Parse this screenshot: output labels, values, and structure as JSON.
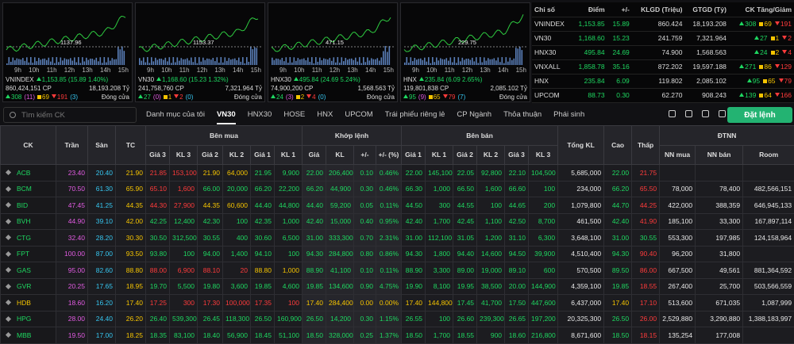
{
  "mini_charts": [
    {
      "name": "VNINDEX",
      "ref": "1137.96",
      "change": "1,153.85 (15.89 1.40%)",
      "volume": "860,424,151 CP",
      "value": "18,193.208 Tỷ",
      "up": "308",
      "up_ceiling": "(11)",
      "ref_count": "69",
      "down": "191",
      "down_floor": "(3)",
      "status": "Đóng cửa"
    },
    {
      "name": "VN30",
      "ref": "1153.37",
      "change": "1,168.60 (15.23 1.32%)",
      "volume": "241,758,760 CP",
      "value": "7,321.964 Tỷ",
      "up": "27",
      "up_ceiling": "(0)",
      "ref_count": "1",
      "down": "2",
      "down_floor": "(0)",
      "status": "Đóng cửa"
    },
    {
      "name": "HNX30",
      "ref": "471.15",
      "change": "495.84 (24.69 5.24%)",
      "volume": "74,900,200 CP",
      "value": "1,568.563 Tỷ",
      "up": "24",
      "up_ceiling": "(3)",
      "ref_count": "2",
      "down": "4",
      "down_floor": "(0)",
      "status": "Đóng cửa"
    },
    {
      "name": "HNX",
      "ref": "229.75",
      "change": "235.84 (6.09 2.65%)",
      "volume": "119,801,838 CP",
      "value": "2,085.102 Tỷ",
      "up": "95",
      "up_ceiling": "(9)",
      "ref_count": "65",
      "down": "79",
      "down_floor": "(7)",
      "status": "Đóng cửa"
    }
  ],
  "times": [
    "9h",
    "10h",
    "11h",
    "12h",
    "13h",
    "14h",
    "15h"
  ],
  "index_table": {
    "headers": [
      "Chỉ số",
      "Điểm",
      "+/-",
      "KLGD (Triệu)",
      "GTGD (Tỷ)",
      "CK Tăng/Giảm"
    ],
    "rows": [
      [
        "VNINDEX",
        "1,153.85",
        "15.89",
        "860.424",
        "18,193.208",
        "308",
        "69",
        "191"
      ],
      [
        "VN30",
        "1,168.60",
        "15.23",
        "241.759",
        "7,321.964",
        "27",
        "1",
        "2"
      ],
      [
        "HNX30",
        "495.84",
        "24.69",
        "74.900",
        "1,568.563",
        "24",
        "2",
        "4"
      ],
      [
        "VNXALL",
        "1,858.78",
        "35.16",
        "872.202",
        "19,597.188",
        "271",
        "86",
        "129"
      ],
      [
        "HNX",
        "235.84",
        "6.09",
        "119.802",
        "2,085.102",
        "95",
        "65",
        "79"
      ],
      [
        "UPCOM",
        "88.73",
        "0.30",
        "62.270",
        "908.243",
        "139",
        "64",
        "166"
      ]
    ]
  },
  "toolbar": {
    "search_placeholder": "Tìm kiếm CK",
    "tabs": [
      "Danh mục của tôi",
      "VN30",
      "HNX30",
      "HOSE",
      "HNX",
      "UPCOM",
      "Trái phiếu riêng lẻ",
      "CP Ngành",
      "Thỏa thuận",
      "Phái sinh"
    ],
    "active_tab": 1,
    "order_button": "Đặt lệnh"
  },
  "colors": {
    "up": "#1ed760",
    "down": "#ff3b3b",
    "ref": "#f5c400",
    "ceiling": "#e25be2",
    "floor": "#36c6f0"
  },
  "table": {
    "header": [
      {
        "label": "CK"
      },
      {
        "label": "Trần"
      },
      {
        "label": "Sàn"
      },
      {
        "label": "TC"
      },
      {
        "label": "Bên mua",
        "columns": [
          "Giá 3",
          "KL 3",
          "Giá 2",
          "KL 2",
          "Giá 1",
          "KL 1"
        ]
      },
      {
        "label": "Khớp lệnh",
        "columns": [
          "Giá",
          "KL",
          "+/-",
          "+/- (%)"
        ]
      },
      {
        "label": "Bên bán",
        "columns": [
          "Giá 1",
          "KL 1",
          "Giá 2",
          "KL 2",
          "Giá 3",
          "KL 3"
        ]
      },
      {
        "label": "Tổng KL"
      },
      {
        "label": "Cao"
      },
      {
        "label": "Thấp"
      },
      {
        "label": "ĐTNN",
        "columns": [
          "NN mua",
          "NN bán",
          "Room"
        ]
      }
    ],
    "rows": [
      [
        "ACB",
        "23.40",
        "20.40",
        "21.90",
        "21.85",
        "153,100",
        "21.90",
        "64,000",
        "21.95",
        "9,900",
        "22.00",
        "206,400",
        "0.10",
        "0.46%",
        "22.00",
        "145,100",
        "22.05",
        "92,800",
        "22.10",
        "104,500",
        "5,685,000",
        "22.00",
        "21.75",
        null,
        null,
        null
      ],
      [
        "BCM",
        "70.50",
        "61.30",
        "65.90",
        "65.10",
        "1,600",
        "66.00",
        "20,000",
        "66.20",
        "22,200",
        "66.20",
        "44,900",
        "0.30",
        "0.46%",
        "66.30",
        "1,000",
        "66.50",
        "1,600",
        "66.60",
        "100",
        "234,000",
        "66.20",
        "65.50",
        "78,000",
        "78,400",
        "482,566,151"
      ],
      [
        "BID",
        "47.45",
        "41.25",
        "44.35",
        "44.30",
        "27,900",
        "44.35",
        "60,600",
        "44.40",
        "44,800",
        "44.40",
        "59,200",
        "0.05",
        "0.11%",
        "44.50",
        "300",
        "44.55",
        "100",
        "44.65",
        "200",
        "1,079,800",
        "44.70",
        "44.25",
        "422,000",
        "388,359",
        "646,945,133"
      ],
      [
        "BVH",
        "44.90",
        "39.10",
        "42.00",
        "42.25",
        "12,400",
        "42.30",
        "100",
        "42.35",
        "1,000",
        "42.40",
        "15,000",
        "0.40",
        "0.95%",
        "42.40",
        "1,700",
        "42.45",
        "1,100",
        "42.50",
        "8,700",
        "461,500",
        "42.40",
        "41.90",
        "185,100",
        "33,300",
        "167,897,114"
      ],
      [
        "CTG",
        "32.40",
        "28.20",
        "30.30",
        "30.50",
        "312,500",
        "30.55",
        "400",
        "30.60",
        "6,500",
        "31.00",
        "333,300",
        "0.70",
        "2.31%",
        "31.00",
        "112,100",
        "31.05",
        "1,200",
        "31.10",
        "6,300",
        "3,648,100",
        "31.00",
        "30.55",
        "553,300",
        "197,985",
        "124,158,964"
      ],
      [
        "FPT",
        "100.00",
        "87.00",
        "93.50",
        "93.80",
        "100",
        "94.00",
        "1,400",
        "94.10",
        "100",
        "94.30",
        "284,800",
        "0.80",
        "0.86%",
        "94.30",
        "1,800",
        "94.40",
        "14,600",
        "94.50",
        "39,900",
        "4,510,400",
        "94.30",
        "90.40",
        "96,200",
        "31,800",
        null
      ],
      [
        "GAS",
        "95.00",
        "82.60",
        "88.80",
        "88.00",
        "6,900",
        "88.10",
        "20",
        "88.80",
        "1,000",
        "88.90",
        "41,100",
        "0.10",
        "0.11%",
        "88.90",
        "3,300",
        "89.00",
        "19,000",
        "89.10",
        "600",
        "570,500",
        "89.50",
        "86.00",
        "667,500",
        "49,561",
        "881,364,592"
      ],
      [
        "GVR",
        "20.25",
        "17.65",
        "18.95",
        "19.70",
        "5,500",
        "19.80",
        "3,600",
        "19.85",
        "4,600",
        "19.85",
        "134,600",
        "0.90",
        "4.75%",
        "19.90",
        "8,100",
        "19.95",
        "38,500",
        "20.00",
        "144,900",
        "4,359,100",
        "19.85",
        "18.55",
        "267,400",
        "25,700",
        "503,566,559"
      ],
      [
        "HDB",
        "18.60",
        "16.20",
        "17.40",
        "17.25",
        "300",
        "17.30",
        "100,000",
        "17.35",
        "100",
        "17.40",
        "284,400",
        "0.00",
        "0.00%",
        "17.40",
        "144,800",
        "17.45",
        "41,700",
        "17.50",
        "447,600",
        "6,437,000",
        "17.40",
        "17.10",
        "513,600",
        "671,035",
        "1,087,999"
      ],
      [
        "HPG",
        "28.00",
        "24.40",
        "26.20",
        "26.40",
        "539,300",
        "26.45",
        "118,300",
        "26.50",
        "160,900",
        "26.50",
        "14,200",
        "0.30",
        "1.15%",
        "26.55",
        "100",
        "26.60",
        "239,300",
        "26.65",
        "197,200",
        "20,325,300",
        "26.50",
        "26.00",
        "2,529,880",
        "3,290,880",
        "1,388,183,997"
      ],
      [
        "MBB",
        "19.50",
        "17.00",
        "18.25",
        "18.35",
        "83,100",
        "18.40",
        "56,900",
        "18.45",
        "51,100",
        "18.50",
        "328,000",
        "0.25",
        "1.37%",
        "18.50",
        "1,700",
        "18.55",
        "900",
        "18.60",
        "216,800",
        "8,671,600",
        "18.50",
        "18.15",
        "135,254",
        "177,008",
        null
      ]
    ]
  }
}
